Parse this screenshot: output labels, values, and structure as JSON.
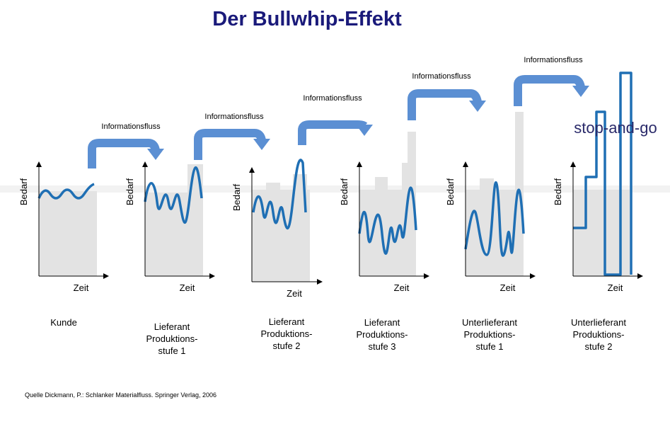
{
  "title": "Der Bullwhip-Effekt",
  "flow_labels": [
    "Informationsfluss",
    "Informationsfluss",
    "Informationsfluss",
    "Informationsfluss",
    "Informationsfluss"
  ],
  "panels": [
    {
      "y_label": "Bedarf",
      "x_label": "Zeit",
      "caption": [
        "Kunde"
      ]
    },
    {
      "y_label": "Bedarf",
      "x_label": "Zeit",
      "caption": [
        "Lieferant",
        "Produktions-",
        "stufe 1"
      ]
    },
    {
      "y_label": "Bedarf",
      "x_label": "Zeit",
      "caption": [
        "Lieferant",
        "Produktions-",
        "stufe 2"
      ]
    },
    {
      "y_label": "Bedarf",
      "x_label": "Zeit",
      "caption": [
        "Lieferant",
        "Produktions-",
        "stufe 3"
      ]
    },
    {
      "y_label": "Bedarf",
      "x_label": "Zeit",
      "caption": [
        "Unterlieferant",
        "Produktions-",
        "stufe 1"
      ]
    },
    {
      "y_label": "Bedarf",
      "x_label": "Zeit",
      "caption": [
        "Unterlieferant",
        "Produktions-",
        "stufe 2"
      ]
    }
  ],
  "annotation": "stop-and-go",
  "source": "Quelle Dickmann, P.: Schlanker Materialfluss. Springer Verlag, 2006"
}
